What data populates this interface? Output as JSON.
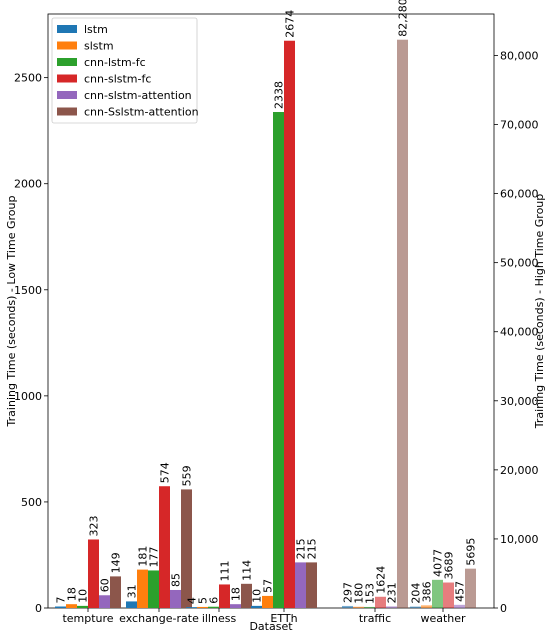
{
  "chart_data": {
    "type": "bar",
    "xlabel": "Dataset",
    "ylabel_left": "Training Time (seconds) - Low Time Group",
    "ylabel_right": "Training Time (seconds) - High Time Group",
    "ylim_left": [
      0,
      2800
    ],
    "ylim_right": [
      0,
      86000
    ],
    "yticks_left": [
      "0",
      "500",
      "1000",
      "1500",
      "2000",
      "2500"
    ],
    "yticks_right": [
      "0",
      "10,000",
      "20,000",
      "30,000",
      "40,000",
      "50,000",
      "60,000",
      "70,000",
      "80,000"
    ],
    "legend_position": "top-left",
    "groups_left": [
      {
        "name": "tempture",
        "values": [
          7,
          18,
          10,
          323,
          60,
          149
        ]
      },
      {
        "name": "exchange-rate",
        "values": [
          31,
          181,
          177,
          574,
          85,
          559
        ]
      },
      {
        "name": "illness",
        "values": [
          4,
          5,
          6,
          111,
          18,
          114
        ]
      },
      {
        "name": "ETTh",
        "values": [
          10,
          57,
          2338,
          2674,
          215,
          215
        ]
      }
    ],
    "groups_right": [
      {
        "name": "traffic",
        "values": [
          297,
          180,
          153,
          1624,
          231,
          82280
        ]
      },
      {
        "name": "weather",
        "values": [
          204,
          386,
          4077,
          3689,
          457,
          5695
        ]
      }
    ],
    "series": [
      {
        "name": "lstm",
        "color": "#1f77b4"
      },
      {
        "name": "slstm",
        "color": "#ff7f0e"
      },
      {
        "name": "cnn-lstm-fc",
        "color": "#2ca02c"
      },
      {
        "name": "cnn-slstm-fc",
        "color": "#d62728"
      },
      {
        "name": "cnn-slstm-attention",
        "color": "#9467bd"
      },
      {
        "name": "cnn-Sslstm-attention",
        "color": "#8c564b"
      }
    ]
  }
}
